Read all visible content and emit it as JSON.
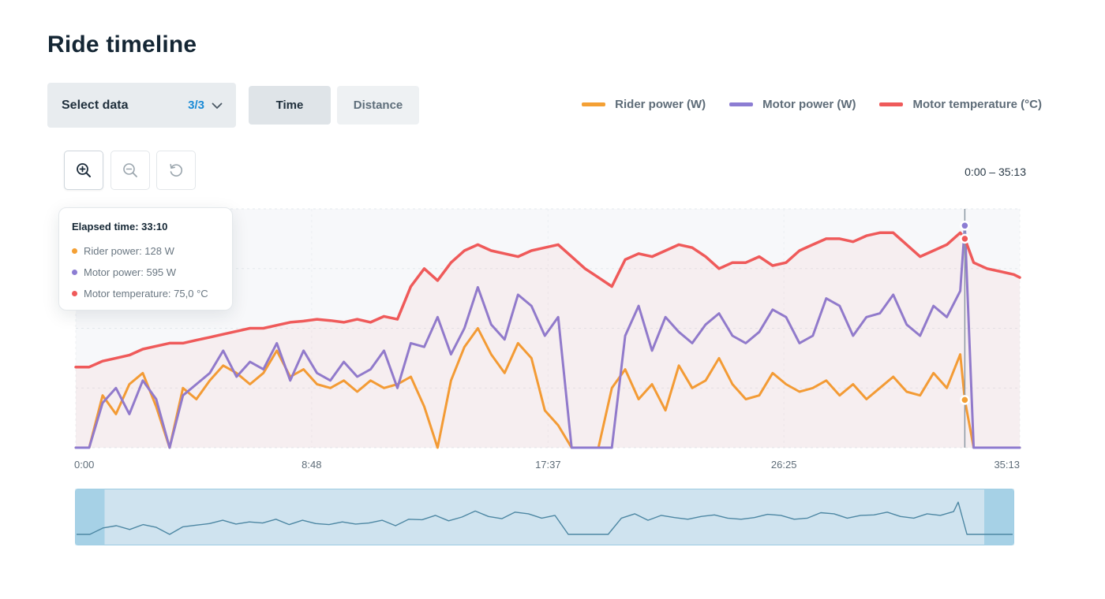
{
  "page": {
    "title": "Ride timeline"
  },
  "controls": {
    "select_data": {
      "label": "Select data",
      "count": "3/3"
    },
    "toggle": {
      "time": "Time",
      "distance": "Distance",
      "selected": "Time"
    },
    "zoom_buttons": [
      "zoom-in-icon",
      "zoom-out-icon",
      "reset-icon"
    ],
    "range_label": "0:00 – 35:13"
  },
  "colors": {
    "rider": "#f4a034",
    "motor": "#8c7dd3",
    "temperature": "#ef5a5a",
    "navigator_fill": "#cfe3ef",
    "navigator_handle": "#a6d1e6",
    "navigator_line": "#4d87a3"
  },
  "legend": [
    {
      "label": "Rider power (W)",
      "color": "#f4a034"
    },
    {
      "label": "Motor power (W)",
      "color": "#8c7dd3"
    },
    {
      "label": "Motor temperature (°C)",
      "color": "#ef5a5a"
    }
  ],
  "tooltip": {
    "title": "Elapsed time: 33:10",
    "rows": [
      {
        "label": "Rider power: 128 W",
        "color": "#f4a034"
      },
      {
        "label": "Motor power: 595 W",
        "color": "#8c7dd3"
      },
      {
        "label": "Motor temperature: 75,0 °C",
        "color": "#ef5a5a"
      }
    ]
  },
  "chart_data": {
    "type": "line",
    "xlabel": "",
    "ylabel": "",
    "x_unit": "minutes",
    "xlim": [
      0,
      35.22
    ],
    "x_tick_labels": [
      "0:00",
      "8:48",
      "17:37",
      "26:25",
      "35:13"
    ],
    "x_tick_values": [
      0,
      8.8,
      17.62,
      26.42,
      35.22
    ],
    "ylim_power": [
      0,
      640
    ],
    "ylim_temperature": [
      40,
      80
    ],
    "grid": true,
    "legend_position": "top-right",
    "cursor_x": 33.17,
    "series": [
      {
        "name": "Rider power (W)",
        "axis": "power",
        "x": [
          0,
          0.5,
          1,
          1.5,
          2,
          2.5,
          3,
          3.5,
          4,
          4.5,
          5,
          5.5,
          6,
          6.5,
          7,
          7.5,
          8,
          8.5,
          9,
          9.5,
          10,
          10.5,
          11,
          11.5,
          12,
          12.5,
          13,
          13.5,
          14,
          14.5,
          15,
          15.5,
          16,
          16.5,
          17,
          17.5,
          18,
          18.5,
          19,
          19.5,
          20,
          20.5,
          21,
          21.5,
          22,
          22.5,
          23,
          23.5,
          24,
          24.5,
          25,
          25.5,
          26,
          26.5,
          27,
          27.5,
          28,
          28.5,
          29,
          29.5,
          30,
          30.5,
          31,
          31.5,
          32,
          32.5,
          33,
          33.17,
          33.5,
          34,
          34.5,
          35,
          35.22
        ],
        "y": [
          0,
          0,
          140,
          90,
          170,
          200,
          110,
          0,
          160,
          130,
          180,
          220,
          200,
          170,
          200,
          260,
          190,
          210,
          170,
          160,
          180,
          150,
          180,
          160,
          170,
          190,
          110,
          0,
          180,
          270,
          320,
          250,
          200,
          280,
          240,
          100,
          60,
          0,
          0,
          0,
          160,
          210,
          130,
          170,
          100,
          220,
          160,
          180,
          240,
          170,
          130,
          140,
          200,
          170,
          150,
          160,
          180,
          140,
          170,
          130,
          160,
          190,
          150,
          140,
          200,
          160,
          250,
          128,
          0,
          0,
          0,
          0,
          0
        ]
      },
      {
        "name": "Motor power (W)",
        "axis": "power",
        "x": [
          0,
          0.5,
          1,
          1.5,
          2,
          2.5,
          3,
          3.5,
          4,
          4.5,
          5,
          5.5,
          6,
          6.5,
          7,
          7.5,
          8,
          8.5,
          9,
          9.5,
          10,
          10.5,
          11,
          11.5,
          12,
          12.5,
          13,
          13.5,
          14,
          14.5,
          15,
          15.5,
          16,
          16.5,
          17,
          17.5,
          18,
          18.5,
          19,
          19.5,
          20,
          20.5,
          21,
          21.5,
          22,
          22.5,
          23,
          23.5,
          24,
          24.5,
          25,
          25.5,
          26,
          26.5,
          27,
          27.5,
          28,
          28.5,
          29,
          29.5,
          30,
          30.5,
          31,
          31.5,
          32,
          32.5,
          33,
          33.17,
          33.5,
          34,
          34.5,
          35,
          35.22
        ],
        "y": [
          0,
          0,
          120,
          160,
          90,
          180,
          130,
          0,
          140,
          170,
          200,
          260,
          190,
          230,
          210,
          280,
          180,
          260,
          200,
          180,
          230,
          190,
          210,
          260,
          160,
          280,
          270,
          350,
          250,
          320,
          430,
          330,
          290,
          410,
          380,
          300,
          350,
          0,
          0,
          0,
          0,
          300,
          380,
          260,
          350,
          310,
          280,
          330,
          360,
          300,
          280,
          310,
          370,
          350,
          280,
          300,
          400,
          380,
          300,
          350,
          360,
          410,
          330,
          300,
          380,
          350,
          420,
          595,
          0,
          0,
          0,
          0,
          0
        ]
      },
      {
        "name": "Motor temperature (°C)",
        "axis": "temperature",
        "x": [
          0,
          0.5,
          1,
          1.5,
          2,
          2.5,
          3,
          3.5,
          4,
          4.5,
          5,
          5.5,
          6,
          6.5,
          7,
          7.5,
          8,
          8.5,
          9,
          9.5,
          10,
          10.5,
          11,
          11.5,
          12,
          12.5,
          13,
          13.5,
          14,
          14.5,
          15,
          15.5,
          16,
          16.5,
          17,
          17.5,
          18,
          18.5,
          19,
          19.5,
          20,
          20.5,
          21,
          21.5,
          22,
          22.5,
          23,
          23.5,
          24,
          24.5,
          25,
          25.5,
          26,
          26.5,
          27,
          27.5,
          28,
          28.5,
          29,
          29.5,
          30,
          30.5,
          31,
          31.5,
          32,
          32.5,
          33,
          33.17,
          33.5,
          34,
          34.5,
          35,
          35.22
        ],
        "y": [
          53.5,
          53.5,
          54.5,
          55,
          55.5,
          56.5,
          57,
          57.5,
          57.5,
          58,
          58.5,
          59,
          59.5,
          60,
          60,
          60.5,
          61,
          61.2,
          61.5,
          61.3,
          61,
          61.5,
          61,
          62,
          61.5,
          67,
          70,
          68,
          71,
          73,
          74,
          73,
          72.5,
          72,
          73,
          73.5,
          74,
          72,
          70,
          68.5,
          67,
          71.5,
          72.5,
          72,
          73,
          74,
          73.5,
          72,
          70,
          71,
          71,
          72,
          70.5,
          71,
          73,
          74,
          75,
          75,
          74.5,
          75.5,
          76,
          76,
          74,
          72,
          73,
          74,
          76,
          75,
          71,
          70,
          69.5,
          69,
          68.5
        ]
      }
    ]
  }
}
